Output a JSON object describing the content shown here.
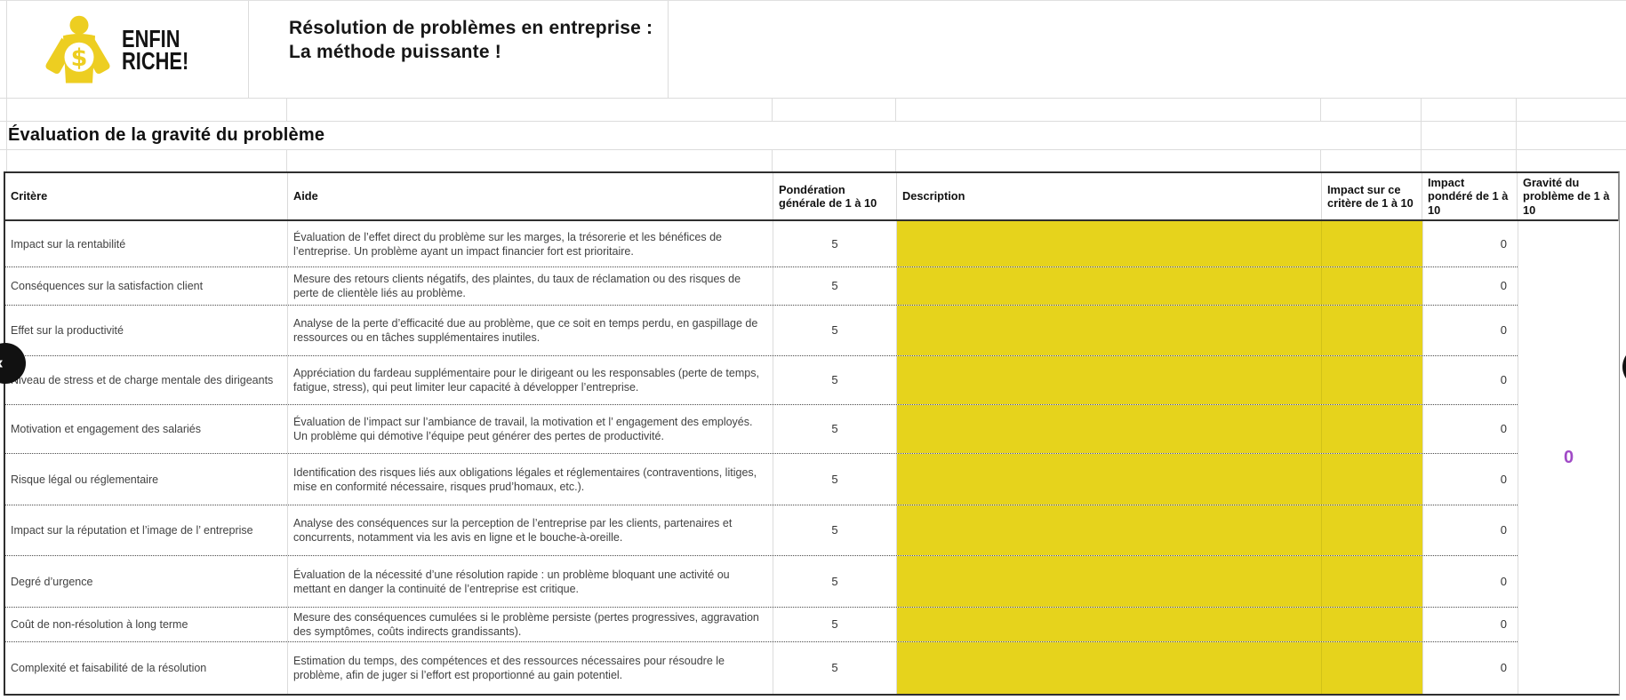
{
  "brand": {
    "wordmark_line1": "ENFIN",
    "wordmark_line2": "RICHE!",
    "currency_symbol": "$"
  },
  "header": {
    "title_line1": "Résolution de problèmes en entreprise :",
    "title_line2": "La méthode puissante !"
  },
  "section_title": "Évaluation de la gravité du problème",
  "nav": {
    "prev_label": "‹",
    "next_label": "›"
  },
  "colors": {
    "highlight_yellow": "#E6D31C",
    "brand_yellow": "#EDCE21",
    "total_purple": "#A04AC6"
  },
  "table": {
    "columns": [
      {
        "label": "Critère"
      },
      {
        "label": "Aide"
      },
      {
        "label": "Pondération générale de 1 à 10"
      },
      {
        "label": "Description"
      },
      {
        "label": "Impact sur ce critère de 1 à 10"
      },
      {
        "label": "Impact pondéré de 1 à 10"
      },
      {
        "label": "Gravité du problème de 1 à 10"
      }
    ],
    "rows": [
      {
        "critere": "Impact sur la rentabilité",
        "aide": "Évaluation de l’effet direct du problème sur les marges, la trésorerie et les bénéfices de l’entreprise. Un problème ayant un impact financier fort est prioritaire.",
        "ponderation": "5",
        "description": "",
        "impact": "",
        "impact_pondere": "0"
      },
      {
        "critere": "Conséquences sur la satisfaction client",
        "aide": "Mesure des retours clients négatifs, des plaintes, du taux de réclamation ou des risques de perte de clientèle liés au problème.",
        "ponderation": "5",
        "description": "",
        "impact": "",
        "impact_pondere": "0"
      },
      {
        "critere": "Effet sur la productivité",
        "aide": "Analyse de la perte d’efficacité due au problème, que ce soit en temps perdu, en gaspillage de ressources ou en tâches supplémentaires inutiles.",
        "ponderation": "5",
        "description": "",
        "impact": "",
        "impact_pondere": "0"
      },
      {
        "critere": "Niveau de stress et de charge mentale des dirigeants",
        "aide": "Appréciation du fardeau supplémentaire pour le dirigeant ou les responsables (perte de temps, fatigue, stress), qui peut limiter leur capacité à développer l’entreprise.",
        "ponderation": "5",
        "description": "",
        "impact": "",
        "impact_pondere": "0"
      },
      {
        "critere": "Motivation et engagement des salariés",
        "aide": "Évaluation de l’impact sur l’ambiance de travail, la motivation et l’ engagement des employés. Un problème qui démotive l’équipe peut générer des pertes de productivité.",
        "ponderation": "5",
        "description": "",
        "impact": "",
        "impact_pondere": "0"
      },
      {
        "critere": "Risque légal ou réglementaire",
        "aide": "Identification des risques liés aux obligations légales et réglementaires (contraventions, litiges, mise en conformité nécessaire, risques prud’homaux, etc.).",
        "ponderation": "5",
        "description": "",
        "impact": "",
        "impact_pondere": "0"
      },
      {
        "critere": "Impact sur la réputation et l’image de l’ entreprise",
        "aide": "Analyse des conséquences sur la perception de l’entreprise par les clients, partenaires et concurrents, notamment via les avis en ligne et le bouche-à-oreille.",
        "ponderation": "5",
        "description": "",
        "impact": "",
        "impact_pondere": "0"
      },
      {
        "critere": "Degré d’urgence",
        "aide": "Évaluation de la nécessité d’une résolution rapide : un problème bloquant une activité ou mettant en danger la continuité de l’entreprise est critique.",
        "ponderation": "5",
        "description": "",
        "impact": "",
        "impact_pondere": "0"
      },
      {
        "critere": "Coût de non-résolution à long terme",
        "aide": "Mesure des conséquences cumulées si le problème persiste (pertes progressives, aggravation des symptômes, coûts indirects grandissants).",
        "ponderation": "5",
        "description": "",
        "impact": "",
        "impact_pondere": "0"
      },
      {
        "critere": "Complexité et faisabilité de la résolution",
        "aide": "Estimation du temps, des compétences et des ressources nécessaires pour résoudre le problème, afin de juger si l’effort est proportionné au gain potentiel.",
        "ponderation": "5",
        "description": "",
        "impact": "",
        "impact_pondere": "0"
      }
    ],
    "total_gravite": "0"
  }
}
